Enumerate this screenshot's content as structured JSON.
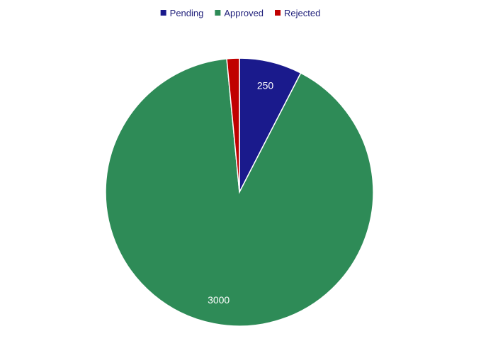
{
  "chart_data": {
    "type": "pie",
    "categories": [
      "Pending",
      "Approved",
      "Rejected"
    ],
    "values": [
      250,
      3000,
      50
    ],
    "colors": [
      "#1a1a8c",
      "#2e8b57",
      "#c00000"
    ],
    "data_labels": [
      "250",
      "3000",
      ""
    ],
    "legend_position": "top"
  }
}
